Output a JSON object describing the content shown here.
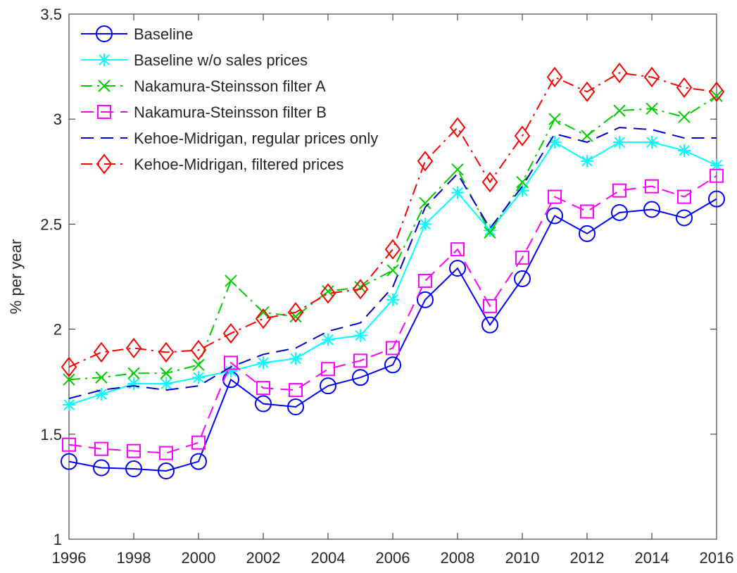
{
  "chart_data": {
    "type": "line",
    "y_label": "% per year",
    "x": [
      1996,
      1997,
      1998,
      1999,
      2000,
      2001,
      2002,
      2003,
      2004,
      2005,
      2006,
      2007,
      2008,
      2009,
      2010,
      2011,
      2012,
      2013,
      2014,
      2015,
      2016
    ],
    "xlim": [
      1996,
      2016
    ],
    "xticks": [
      1996,
      1998,
      2000,
      2002,
      2004,
      2006,
      2008,
      2010,
      2012,
      2014,
      2016
    ],
    "ylim": [
      1,
      3.5
    ],
    "yticks": [
      1,
      1.5,
      2,
      2.5,
      3,
      3.5
    ],
    "grid": false,
    "legend": "upper left",
    "series": [
      {
        "name": "Baseline",
        "color": "#0000ff",
        "marker": "circle",
        "line_style": "solid",
        "values": [
          1.37,
          1.34,
          1.335,
          1.325,
          1.37,
          1.76,
          1.645,
          1.63,
          1.73,
          1.77,
          1.83,
          2.14,
          2.29,
          2.02,
          2.24,
          2.54,
          2.455,
          2.555,
          2.57,
          2.53,
          2.62
        ]
      },
      {
        "name": "Baseline w/o sales prices",
        "color": "#00ffff",
        "marker": "star",
        "line_style": "solid",
        "values": [
          1.64,
          1.69,
          1.74,
          1.74,
          1.77,
          1.8,
          1.84,
          1.86,
          1.95,
          1.97,
          2.14,
          2.5,
          2.65,
          2.47,
          2.66,
          2.89,
          2.8,
          2.89,
          2.89,
          2.85,
          2.78
        ]
      },
      {
        "name": "Nakamura-Steinsson filter A",
        "color": "#00cc00",
        "marker": "x",
        "line_style": "dashdot",
        "values": [
          1.76,
          1.77,
          1.79,
          1.79,
          1.83,
          2.23,
          2.08,
          2.06,
          2.18,
          2.2,
          2.28,
          2.6,
          2.76,
          2.46,
          2.7,
          3.0,
          2.92,
          3.04,
          3.05,
          3.01,
          3.11
        ]
      },
      {
        "name": "Nakamura-Steinsson filter B",
        "color": "#ff00ff",
        "marker": "square",
        "line_style": "dashed",
        "values": [
          1.45,
          1.43,
          1.42,
          1.41,
          1.46,
          1.84,
          1.72,
          1.71,
          1.81,
          1.85,
          1.91,
          2.23,
          2.38,
          2.11,
          2.34,
          2.63,
          2.56,
          2.66,
          2.68,
          2.63,
          2.73
        ]
      },
      {
        "name": "Kehoe-Midrigan, regular prices only",
        "color": "#0000cc",
        "marker": "none",
        "line_style": "dashed",
        "values": [
          1.67,
          1.71,
          1.73,
          1.71,
          1.73,
          1.82,
          1.88,
          1.91,
          1.99,
          2.03,
          2.2,
          2.58,
          2.74,
          2.48,
          2.68,
          2.93,
          2.89,
          2.96,
          2.95,
          2.91,
          2.91
        ]
      },
      {
        "name": "Kehoe-Midrigan, filtered prices",
        "color": "#ff0000",
        "marker": "diamond",
        "line_style": "dashdot",
        "values": [
          1.82,
          1.89,
          1.91,
          1.89,
          1.9,
          1.98,
          2.05,
          2.08,
          2.17,
          2.19,
          2.38,
          2.8,
          2.96,
          2.7,
          2.92,
          3.2,
          3.13,
          3.22,
          3.2,
          3.15,
          3.13
        ]
      }
    ]
  }
}
